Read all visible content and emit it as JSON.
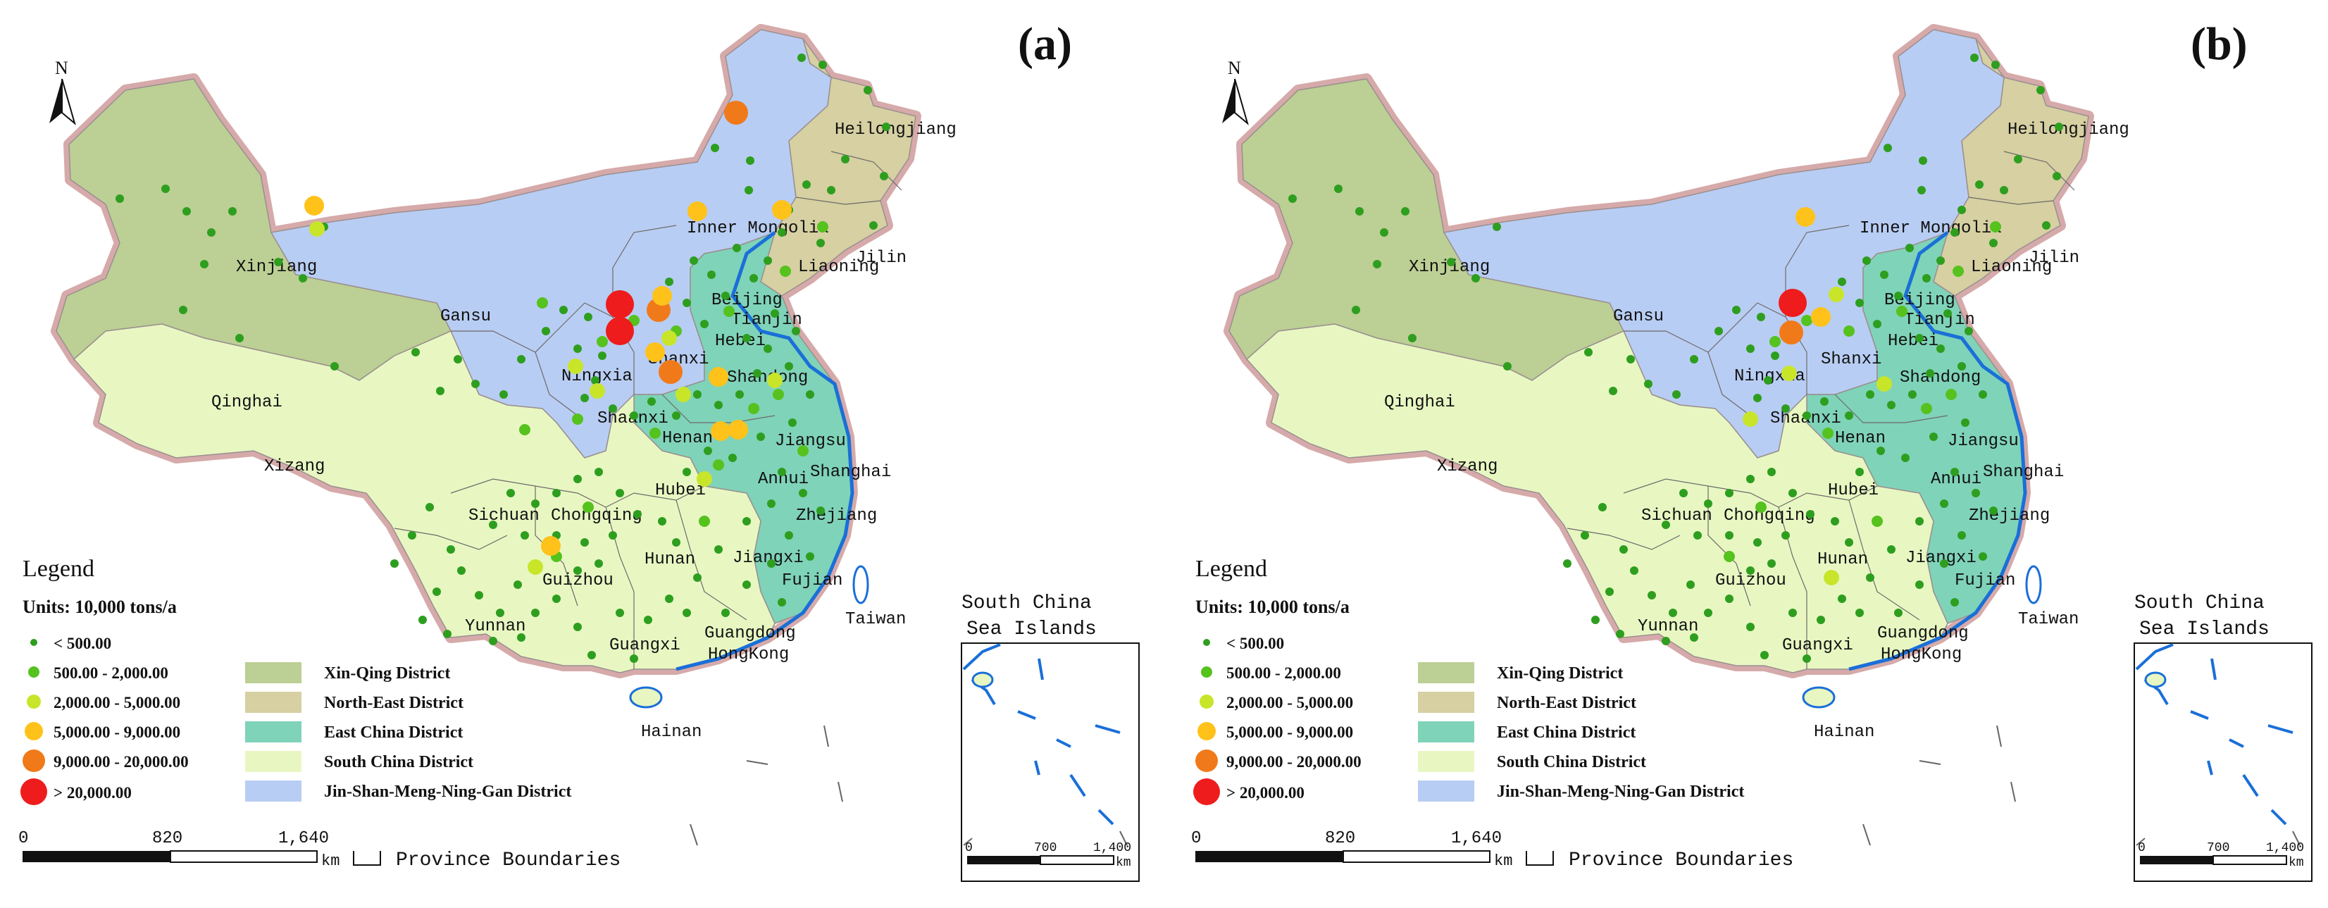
{
  "legend": {
    "title": "Legend",
    "units": "Units: 10,000  tons/a",
    "size_classes": [
      "< 500.00",
      "500.00 - 2,000.00",
      "2,000.00 - 5,000.00",
      "5,000.00 - 9,000.00",
      "9,000.00 - 20,000.00",
      "> 20,000.00"
    ],
    "districts": [
      "Xin-Qing District",
      "North-East District",
      "East China District",
      "South China District",
      "Jin-Shan-Meng-Ning-Gan District"
    ],
    "boundary_label": "Province Boundaries"
  },
  "colors": {
    "class_colors": [
      "#2e9e1f",
      "#55c21e",
      "#c8e52a",
      "#ffc21a",
      "#f07a1a",
      "#ee1c1c"
    ],
    "district_colors": [
      "#bccf94",
      "#d6d0a2",
      "#7fd3b8",
      "#e8f7c2",
      "#b8cdf3"
    ],
    "coast": "#1a6fd8",
    "border": "#c39a9a"
  },
  "scale_bar": {
    "ticks": [
      "0",
      "820",
      "1,640"
    ],
    "unit": "km"
  },
  "inset": {
    "title_line1": "South China",
    "title_line2": "Sea Islands",
    "ticks": [
      "0",
      "700",
      "1,400"
    ],
    "unit": "km"
  },
  "north_label": "N",
  "place_labels": [
    "Heilongjiang",
    "Jilin",
    "Liaoning",
    "Inner Mongolia",
    "Xinjiang",
    "Qinghai",
    "Xizang",
    "Gansu",
    "Ningxia",
    "Shaanxi",
    "Shanxi",
    "Beijing",
    "Tianjin",
    "Hebei",
    "Shandong",
    "Henan",
    "Jiangsu",
    "Anhui",
    "Shanghai",
    "Hubei",
    "Sichuan",
    "Chongqing",
    "Zhejiang",
    "Hunan",
    "Jiangxi",
    "Guizhou",
    "Yunnan",
    "Fujian",
    "Taiwan",
    "Guangxi",
    "Guangdong",
    "HongKong",
    "Hainan"
  ],
  "panels": [
    {
      "tag": "(a)",
      "sites": [
        {
          "loc": "Inner Mongolia (Hulunbuir)",
          "class": 5
        },
        {
          "loc": "Shanxi north",
          "class": 6
        },
        {
          "loc": "Shanxi central",
          "class": 6
        },
        {
          "loc": "Shanxi",
          "class": 5
        },
        {
          "loc": "Henan north",
          "class": 5
        },
        {
          "loc": "Inner Mongolia (Ordos)",
          "class": 4
        },
        {
          "loc": "Shanxi",
          "class": 4
        },
        {
          "loc": "Shanxi south",
          "class": 4
        },
        {
          "loc": "Henan",
          "class": 4
        },
        {
          "loc": "Shandong",
          "class": 4
        },
        {
          "loc": "Jiangsu north",
          "class": 4
        },
        {
          "loc": "Guizhou",
          "class": 4
        },
        {
          "loc": "Xinjiang",
          "class": 4
        },
        {
          "loc": "Inner Mongolia east",
          "class": 4
        },
        {
          "loc": "Xinjiang",
          "class": 3
        },
        {
          "loc": "Ningxia",
          "class": 3
        },
        {
          "loc": "Shaanxi",
          "class": 3
        },
        {
          "loc": "Hebei",
          "class": 3
        },
        {
          "loc": "Anhui",
          "class": 3
        },
        {
          "loc": "Yunnan",
          "class": 3
        },
        {
          "loc": "Shandong",
          "class": 3
        },
        {
          "loc": "Henan",
          "class": 3
        }
      ]
    },
    {
      "tag": "(b)",
      "sites": [
        {
          "loc": "Shanxi north",
          "class": 6
        },
        {
          "loc": "Shanxi",
          "class": 5
        },
        {
          "loc": "Inner Mongolia",
          "class": 4
        },
        {
          "loc": "Shanxi",
          "class": 4
        },
        {
          "loc": "Hebei",
          "class": 3
        },
        {
          "loc": "Shaanxi",
          "class": 3
        },
        {
          "loc": "Henan",
          "class": 3
        },
        {
          "loc": "Guizhou",
          "class": 3
        },
        {
          "loc": "Shandong",
          "class": 3
        }
      ]
    }
  ]
}
